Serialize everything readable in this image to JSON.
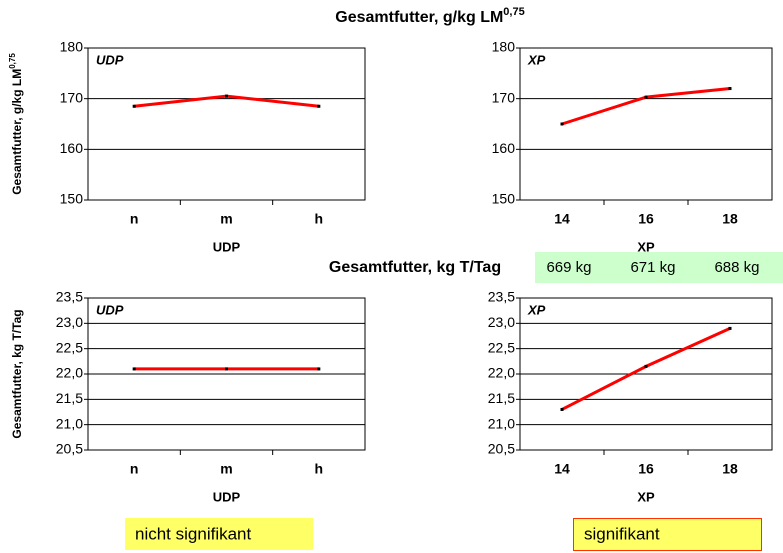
{
  "heading_top": "Gesamtfutter, g/kg LM",
  "heading_top_sup": "0,75",
  "heading_mid": "Gesamtfutter, kg T/Tag",
  "weights": [
    "669 kg",
    "671 kg",
    "688 kg"
  ],
  "note_left": "nicht signifikant",
  "note_right": "signifikant",
  "chart_data": [
    {
      "type": "line",
      "label": "UDP",
      "x_label": "UDP",
      "y_label": "Gesamtfutter, g/kg LM",
      "y_label_sup": "0,75",
      "categories": [
        "n",
        "m",
        "h"
      ],
      "color": "#ff0000",
      "values": [
        168.5,
        170.5,
        168.5
      ],
      "ylim": [
        150,
        180
      ],
      "yticks": [
        150,
        160,
        170,
        180
      ],
      "grid": true
    },
    {
      "type": "line",
      "label": "XP",
      "x_label": "XP",
      "categories": [
        "14",
        "16",
        "18"
      ],
      "color": "#ff0000",
      "values": [
        165,
        170.3,
        172
      ],
      "ylim": [
        150,
        180
      ],
      "yticks": [
        150,
        160,
        170,
        180
      ],
      "grid": true
    },
    {
      "type": "line",
      "label": "UDP",
      "x_label": "UDP",
      "y_label": "Gesamtfutter, kg T/Tag",
      "categories": [
        "n",
        "m",
        "h"
      ],
      "color": "#ff0000",
      "values": [
        22.1,
        22.1,
        22.1
      ],
      "ylim": [
        20.5,
        23.5
      ],
      "yticks": [
        {
          "value": 20.5,
          "label": "20,5"
        },
        {
          "value": 21,
          "label": "21,0"
        },
        {
          "value": 21.5,
          "label": "21,5"
        },
        {
          "value": 22,
          "label": "22,0"
        },
        {
          "value": 22.5,
          "label": "22,5"
        },
        {
          "value": 23,
          "label": "23,0"
        },
        {
          "value": 23.5,
          "label": "23,5"
        }
      ],
      "grid": true
    },
    {
      "type": "line",
      "label": "XP",
      "x_label": "XP",
      "categories": [
        "14",
        "16",
        "18"
      ],
      "color": "#ff0000",
      "values": [
        21.3,
        22.15,
        22.9
      ],
      "ylim": [
        20.5,
        23.5
      ],
      "yticks": [
        {
          "value": 20.5,
          "label": "20,5"
        },
        {
          "value": 21,
          "label": "21,0"
        },
        {
          "value": 21.5,
          "label": "21,5"
        },
        {
          "value": 22,
          "label": "22,0"
        },
        {
          "value": 22.5,
          "label": "22,5"
        },
        {
          "value": 23,
          "label": "23,0"
        },
        {
          "value": 23.5,
          "label": "23,5"
        }
      ],
      "grid": true
    }
  ]
}
